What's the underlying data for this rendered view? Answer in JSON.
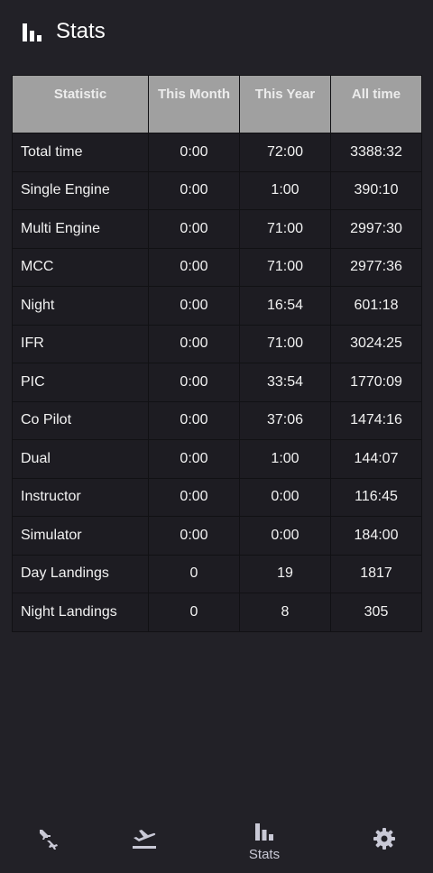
{
  "header": {
    "title": "Stats",
    "icon": "bar-chart-icon"
  },
  "table": {
    "headers": [
      "Statistic",
      "This Month",
      "This Year",
      "All time"
    ],
    "rows": [
      {
        "label": "Total time",
        "month": "0:00",
        "year": "72:00",
        "all": "3388:32"
      },
      {
        "label": "Single Engine",
        "month": "0:00",
        "year": "1:00",
        "all": "390:10"
      },
      {
        "label": "Multi Engine",
        "month": "0:00",
        "year": "71:00",
        "all": "2997:30"
      },
      {
        "label": "MCC",
        "month": "0:00",
        "year": "71:00",
        "all": "2977:36"
      },
      {
        "label": "Night",
        "month": "0:00",
        "year": "16:54",
        "all": "601:18"
      },
      {
        "label": "IFR",
        "month": "0:00",
        "year": "71:00",
        "all": "3024:25"
      },
      {
        "label": "PIC",
        "month": "0:00",
        "year": "33:54",
        "all": "1770:09"
      },
      {
        "label": "Co Pilot",
        "month": "0:00",
        "year": "37:06",
        "all": "1474:16"
      },
      {
        "label": "Dual",
        "month": "0:00",
        "year": "1:00",
        "all": "144:07"
      },
      {
        "label": "Instructor",
        "month": "0:00",
        "year": "0:00",
        "all": "116:45"
      },
      {
        "label": "Simulator",
        "month": "0:00",
        "year": "0:00",
        "all": "184:00"
      },
      {
        "label": "Day Landings",
        "month": "0",
        "year": "19",
        "all": "1817"
      },
      {
        "label": "Night Landings",
        "month": "0",
        "year": "8",
        "all": "305"
      }
    ]
  },
  "nav": {
    "items": [
      {
        "id": "flights",
        "icon": "airplanes-icon",
        "label": ""
      },
      {
        "id": "takeoff",
        "icon": "airplane-takeoff-icon",
        "label": ""
      },
      {
        "id": "stats",
        "icon": "bar-chart-icon",
        "label": "Stats"
      },
      {
        "id": "settings",
        "icon": "gear-icon",
        "label": ""
      }
    ]
  },
  "colors": {
    "background": "#222127",
    "header_row": "#a0a0a0",
    "cell_background": "#1d1c22",
    "nav_icon": "#c9c9d6"
  }
}
